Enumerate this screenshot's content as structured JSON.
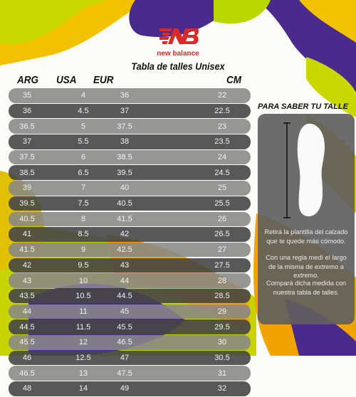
{
  "brand": {
    "name": "new balance",
    "color": "#d62b2b"
  },
  "title": "Tabla de talles Unisex",
  "columns": [
    "ARG",
    "USA",
    "EUR",
    "CM"
  ],
  "rows": [
    [
      "35",
      "4",
      "36",
      "22"
    ],
    [
      "36",
      "4.5",
      "37",
      "22.5"
    ],
    [
      "36.5",
      "5",
      "37.5",
      "23"
    ],
    [
      "37",
      "5.5",
      "38",
      "23.5"
    ],
    [
      "37.5",
      "6",
      "38.5",
      "24"
    ],
    [
      "38.5",
      "6.5",
      "39.5",
      "24.5"
    ],
    [
      "39",
      "7",
      "40",
      "25"
    ],
    [
      "39.5",
      "7.5",
      "40.5",
      "25.5"
    ],
    [
      "40.5",
      "8",
      "41.5",
      "26"
    ],
    [
      "41",
      "8.5",
      "42",
      "26.5"
    ],
    [
      "41.5",
      "9",
      "42.5",
      "27"
    ],
    [
      "42",
      "9.5",
      "43",
      "27.5"
    ],
    [
      "43",
      "10",
      "44",
      "28"
    ],
    [
      "43.5",
      "10.5",
      "44.5",
      "28.5"
    ],
    [
      "44",
      "11",
      "45",
      "29"
    ],
    [
      "44.5",
      "11.5",
      "45.5",
      "29.5"
    ],
    [
      "45.5",
      "12",
      "46.5",
      "30"
    ],
    [
      "46",
      "12.5",
      "47",
      "30.5"
    ],
    [
      "46.5",
      "13",
      "47.5",
      "31"
    ],
    [
      "48",
      "14",
      "49",
      "32"
    ]
  ],
  "guide": {
    "title": "PARA SABER TU TALLE",
    "step1": "Retirá la plantilla del calzado que te quede más cómodo.",
    "step2": "Con una regla medí el largo de la misma de extremo a extremo.",
    "step3": "Compará dicha medida con nuestra tabla de talles."
  },
  "colors": {
    "purple": "#4a2a8c",
    "yellow": "#f2c200",
    "lime": "#cfe000",
    "orange": "#f0a000",
    "row_light": "#878787",
    "row_dark": "#464646"
  }
}
